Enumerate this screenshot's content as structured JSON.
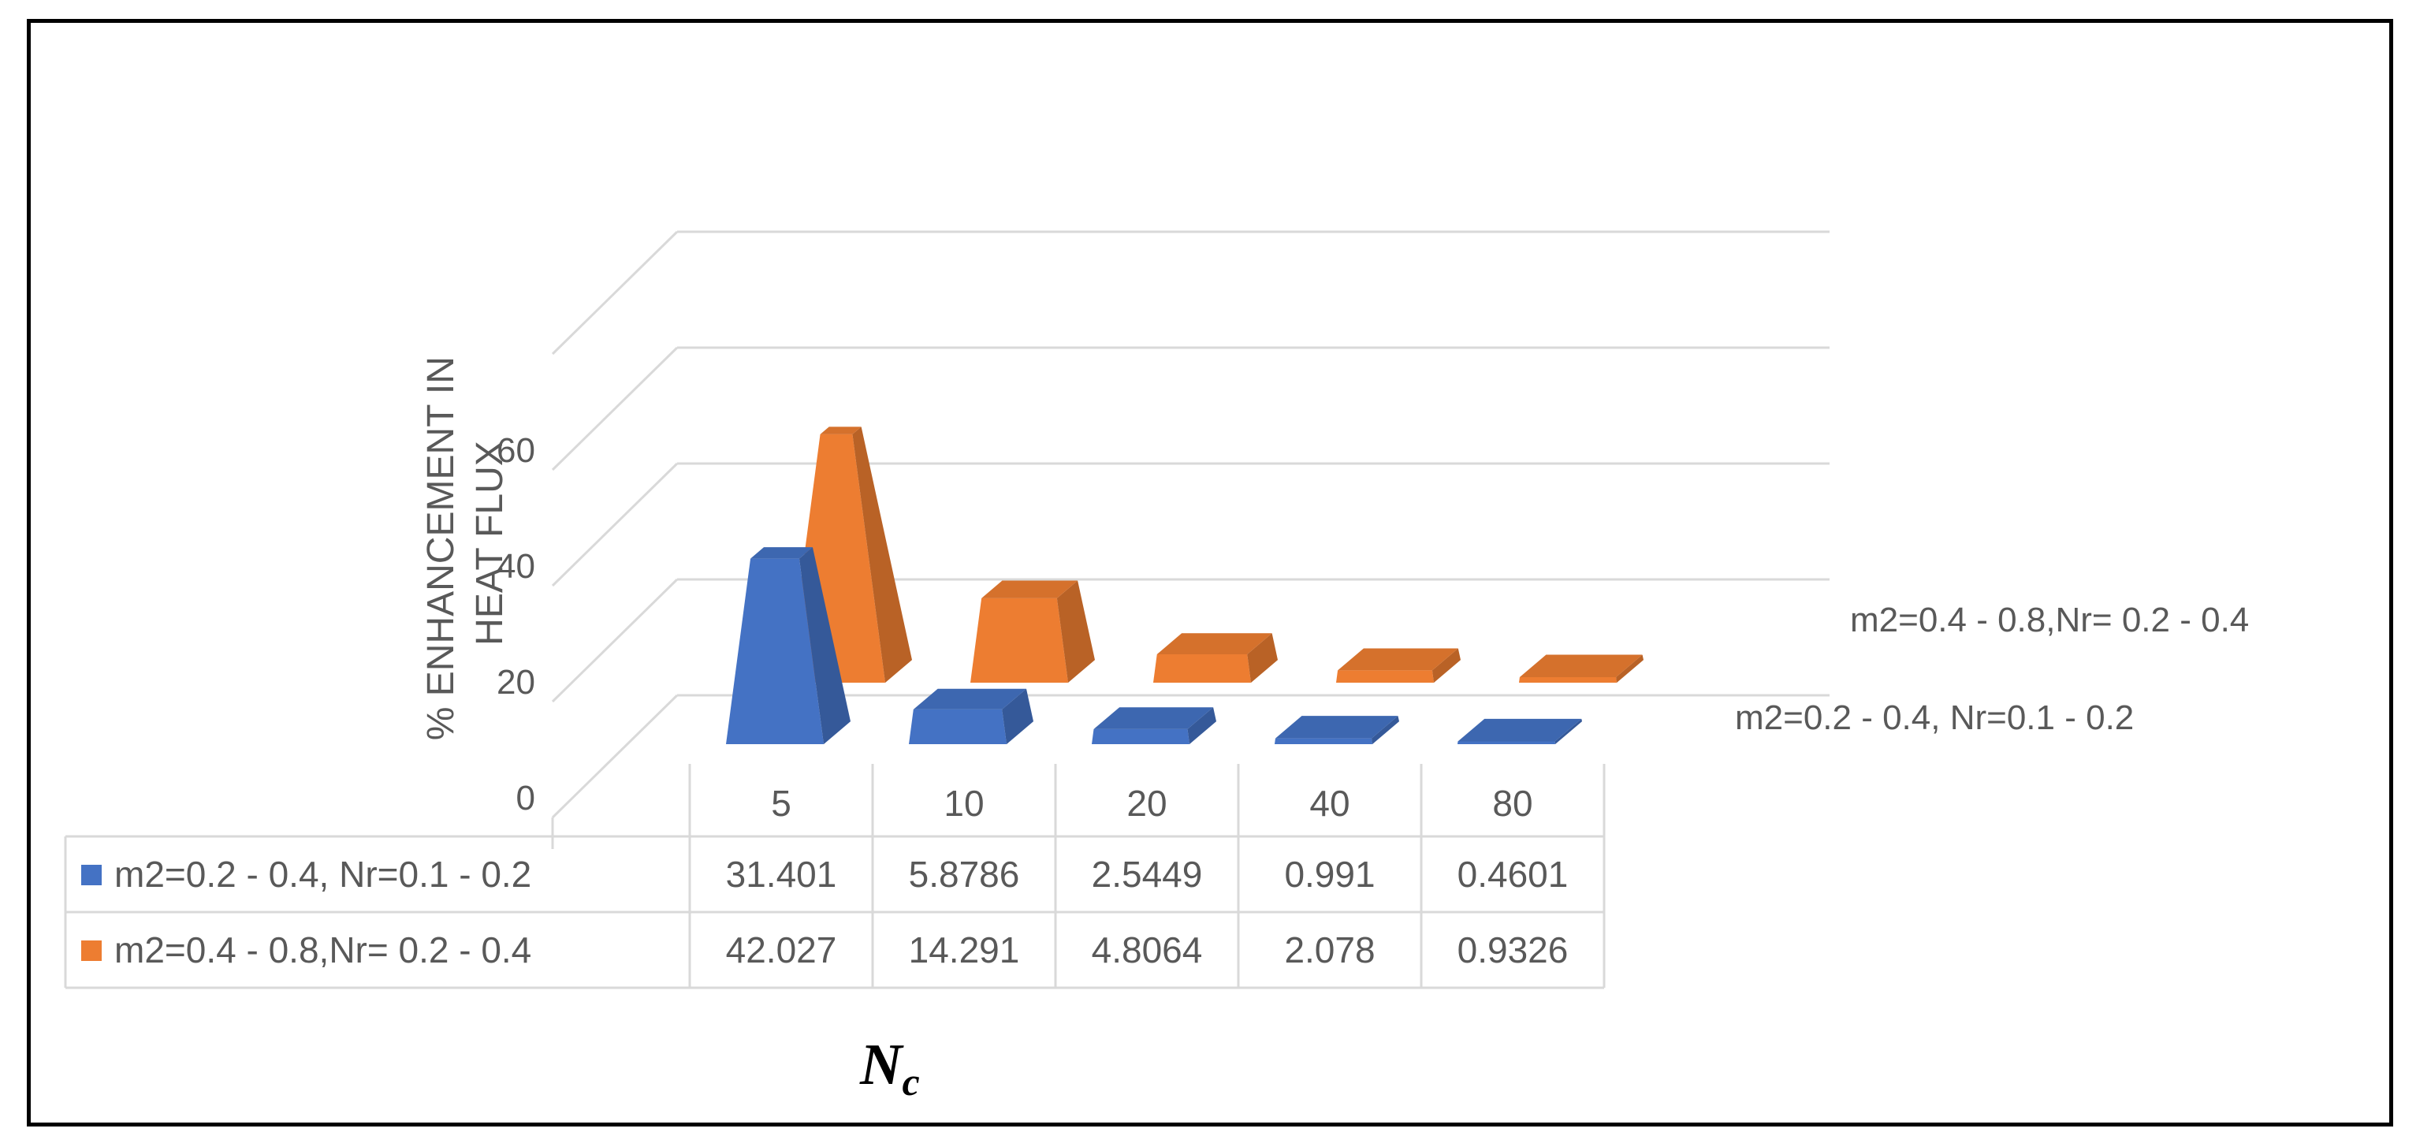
{
  "chart_data": {
    "type": "bar",
    "style": "3d-pyramid",
    "title": "",
    "categories": [
      "5",
      "10",
      "20",
      "40",
      "80"
    ],
    "series": [
      {
        "name": "m2=0.2 - 0.4, Nr=0.1 - 0.2",
        "values": [
          31.401,
          5.8786,
          2.5449,
          0.991,
          0.4601
        ],
        "display": [
          "31.401",
          "5.8786",
          "2.5449",
          "0.991",
          "0.4601"
        ],
        "color": "#4472C4"
      },
      {
        "name": "m2=0.4 - 0.8,Nr= 0.2 - 0.4",
        "values": [
          42.027,
          14.291,
          4.8064,
          2.078,
          0.9326
        ],
        "display": [
          "42.027",
          "14.291",
          "4.8064",
          "2.078",
          "0.9326"
        ],
        "color": "#ED7D31"
      }
    ],
    "ylabel_line1": "% ENHANCEMENT IN",
    "ylabel_line2": "HEAT FLUX",
    "xlabel_main": "N",
    "xlabel_sub": "c",
    "yticks": [
      "0",
      "20",
      "40",
      "60"
    ],
    "ylim": [
      0,
      80
    ],
    "grid": true,
    "data_table": true
  }
}
